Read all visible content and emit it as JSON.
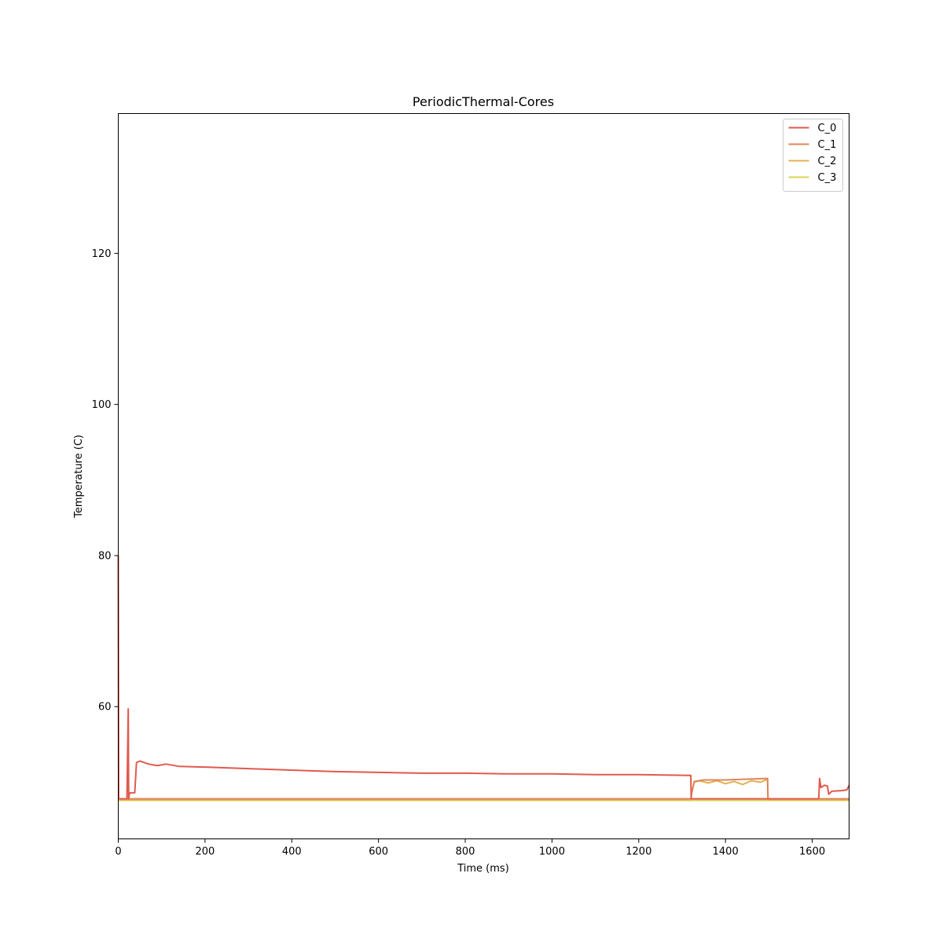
{
  "chart_data": {
    "type": "line",
    "title": "PeriodicThermal-Cores",
    "xlabel": "Time (ms)",
    "ylabel": "Temperature (C)",
    "xlim": [
      0,
      1685
    ],
    "ylim": [
      42.5,
      138.5
    ],
    "xticks": [
      0,
      200,
      400,
      600,
      800,
      1000,
      1200,
      1400,
      1600
    ],
    "yticks": [
      60,
      80,
      100,
      120
    ],
    "grid": false,
    "legend_position": "top-right",
    "series": [
      {
        "name": "C_0",
        "color": "#e05a4f",
        "points": [
          [
            0,
            80.0
          ],
          [
            1,
            47.8
          ],
          [
            20,
            47.8
          ],
          [
            23,
            59.7
          ],
          [
            24,
            47.8
          ],
          [
            26,
            48.6
          ],
          [
            38,
            48.6
          ],
          [
            42,
            52.6
          ],
          [
            50,
            52.8
          ],
          [
            70,
            52.4
          ],
          [
            90,
            52.2
          ],
          [
            110,
            52.4
          ],
          [
            140,
            52.1
          ],
          [
            200,
            52.0
          ],
          [
            300,
            51.8
          ],
          [
            400,
            51.6
          ],
          [
            500,
            51.4
          ],
          [
            600,
            51.3
          ],
          [
            700,
            51.2
          ],
          [
            800,
            51.2
          ],
          [
            900,
            51.1
          ],
          [
            1000,
            51.1
          ],
          [
            1100,
            51.0
          ],
          [
            1200,
            51.0
          ],
          [
            1320,
            50.9
          ],
          [
            1321,
            47.8
          ],
          [
            1615,
            47.8
          ],
          [
            1617,
            50.5
          ],
          [
            1620,
            49.3
          ],
          [
            1628,
            49.6
          ],
          [
            1635,
            49.5
          ],
          [
            1638,
            48.4
          ],
          [
            1645,
            48.8
          ],
          [
            1670,
            48.9
          ],
          [
            1680,
            49.0
          ],
          [
            1685,
            49.6
          ]
        ]
      },
      {
        "name": "C_1",
        "color": "#e0855a",
        "points": [
          [
            0,
            47.8
          ],
          [
            1320,
            47.8
          ],
          [
            1322,
            48.6
          ],
          [
            1328,
            50.1
          ],
          [
            1350,
            50.3
          ],
          [
            1400,
            50.3
          ],
          [
            1450,
            50.4
          ],
          [
            1497,
            50.5
          ],
          [
            1498,
            47.8
          ],
          [
            1685,
            47.8
          ]
        ]
      },
      {
        "name": "C_2",
        "color": "#e3b055",
        "points": [
          [
            0,
            47.7
          ],
          [
            1320,
            47.7
          ],
          [
            1322,
            48.5
          ],
          [
            1328,
            50.0
          ],
          [
            1340,
            50.2
          ],
          [
            1360,
            49.9
          ],
          [
            1380,
            50.2
          ],
          [
            1400,
            49.8
          ],
          [
            1420,
            50.1
          ],
          [
            1440,
            49.7
          ],
          [
            1460,
            50.2
          ],
          [
            1480,
            50.0
          ],
          [
            1497,
            50.4
          ],
          [
            1498,
            47.7
          ],
          [
            1685,
            47.7
          ]
        ]
      },
      {
        "name": "C_3",
        "color": "#d9d451",
        "points": [
          [
            0,
            47.6
          ],
          [
            1685,
            47.6
          ]
        ]
      }
    ]
  }
}
